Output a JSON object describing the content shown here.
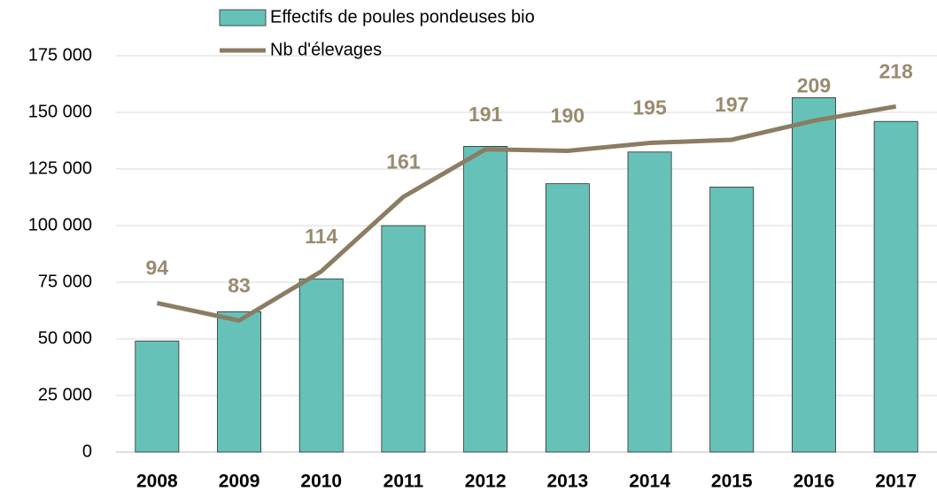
{
  "chart_data": {
    "type": "bar_line",
    "categories": [
      "2008",
      "2009",
      "2010",
      "2011",
      "2012",
      "2013",
      "2014",
      "2015",
      "2016",
      "2017"
    ],
    "series": [
      {
        "name": "Effectifs de poules pondeuses bio",
        "type": "bar",
        "color": "#66c2b8",
        "values": [
          49000,
          62000,
          76500,
          100000,
          135000,
          118500,
          132500,
          117000,
          156500,
          146000
        ]
      },
      {
        "name": "Nb d'élevages",
        "type": "line",
        "axis": "y2",
        "color": "#8b7d63",
        "values": [
          94,
          83,
          114,
          161,
          191,
          190,
          195,
          197,
          209,
          218
        ]
      }
    ],
    "ylim": [
      0,
      175000
    ],
    "yticks": [
      0,
      {
        "value": 25000,
        "label": "25 000"
      },
      {
        "value": 50000,
        "label": "50 000"
      },
      {
        "value": 75000,
        "label": "75 000"
      },
      {
        "value": 100000,
        "label": "100 000"
      },
      {
        "value": 125000,
        "label": "125 000"
      },
      {
        "value": 150000,
        "label": "150 000"
      },
      {
        "value": 175000,
        "label": "175 000"
      }
    ],
    "y2lim": [
      0,
      250
    ],
    "grid": true,
    "legend": "top"
  }
}
